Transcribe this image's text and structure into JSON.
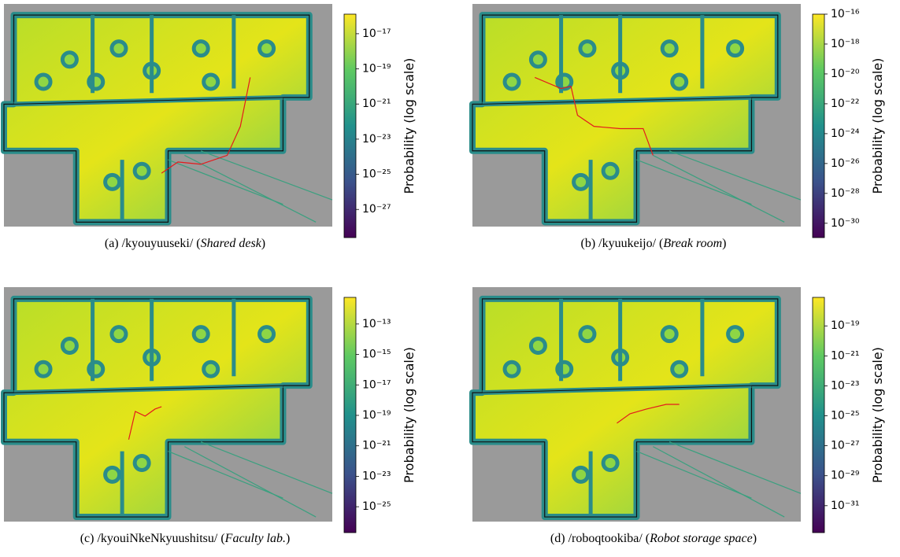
{
  "chart_data": [
    {
      "type": "heatmap",
      "caption_prefix": "(a) /kyouyuuseki/ (",
      "caption_italic": "Shared desk",
      "caption_suffix": ")",
      "colorbar_label": "Probability (log scale)",
      "log_scale": true,
      "clim": [
        2.5e-29,
        1.3e-16
      ],
      "colormap": [
        "#440154",
        "#3b528b",
        "#21918c",
        "#5ec962",
        "#fde725"
      ],
      "cticks": [
        {
          "value": 1e-17,
          "label": "10⁻¹⁷"
        },
        {
          "value": 1e-19,
          "label": "10⁻¹⁹"
        },
        {
          "value": 1e-21,
          "label": "10⁻²¹"
        },
        {
          "value": 1e-23,
          "label": "10⁻²³"
        },
        {
          "value": 1e-25,
          "label": "10⁻²⁵"
        },
        {
          "value": 1e-27,
          "label": "10⁻²⁷"
        }
      ]
    },
    {
      "type": "heatmap",
      "caption_prefix": "(b) /kyuukeijo/ (",
      "caption_italic": "Break room",
      "caption_suffix": ")",
      "colorbar_label": "Probability (log scale)",
      "log_scale": true,
      "clim": [
        1.1e-31,
        1e-16
      ],
      "colormap": [
        "#440154",
        "#3b528b",
        "#21918c",
        "#5ec962",
        "#fde725"
      ],
      "cticks": [
        {
          "value": 1e-16,
          "label": "10⁻¹⁶"
        },
        {
          "value": 1e-18,
          "label": "10⁻¹⁸"
        },
        {
          "value": 1e-20,
          "label": "10⁻²⁰"
        },
        {
          "value": 1e-22,
          "label": "10⁻²²"
        },
        {
          "value": 1e-24,
          "label": "10⁻²⁴"
        },
        {
          "value": 1e-26,
          "label": "10⁻²⁶"
        },
        {
          "value": 1e-28,
          "label": "10⁻²⁸"
        },
        {
          "value": 1e-30,
          "label": "10⁻³⁰"
        }
      ]
    },
    {
      "type": "heatmap",
      "caption_prefix": "(c) /kyouiNkeNkyuushitsu/ (",
      "caption_italic": "Faculty lab.",
      "caption_suffix": ")",
      "colorbar_label": "Probability (log scale)",
      "log_scale": true,
      "clim": [
        2e-27,
        5.6e-12
      ],
      "colormap": [
        "#440154",
        "#3b528b",
        "#21918c",
        "#5ec962",
        "#fde725"
      ],
      "cticks": [
        {
          "value": 1e-13,
          "label": "10⁻¹³"
        },
        {
          "value": 1e-15,
          "label": "10⁻¹⁵"
        },
        {
          "value": 1e-17,
          "label": "10⁻¹⁷"
        },
        {
          "value": 1e-19,
          "label": "10⁻¹⁹"
        },
        {
          "value": 1e-21,
          "label": "10⁻²¹"
        },
        {
          "value": 1e-23,
          "label": "10⁻²³"
        },
        {
          "value": 1e-25,
          "label": "10⁻²⁵"
        }
      ]
    },
    {
      "type": "heatmap",
      "caption_prefix": "(d) /roboqtookiba/ (",
      "caption_italic": "Robot storage space",
      "caption_suffix": ")",
      "colorbar_label": "Probability (log scale)",
      "log_scale": true,
      "clim": [
        1.6e-33,
        8e-18
      ],
      "colormap": [
        "#440154",
        "#3b528b",
        "#21918c",
        "#5ec962",
        "#fde725"
      ],
      "cticks": [
        {
          "value": 1e-19,
          "label": "10⁻¹⁹"
        },
        {
          "value": 1e-21,
          "label": "10⁻²¹"
        },
        {
          "value": 1e-23,
          "label": "10⁻²³"
        },
        {
          "value": 1e-25,
          "label": "10⁻²⁵"
        },
        {
          "value": 1e-27,
          "label": "10⁻²⁷"
        },
        {
          "value": 1e-29,
          "label": "10⁻²⁹"
        },
        {
          "value": 1e-31,
          "label": "10⁻³¹"
        }
      ]
    }
  ]
}
